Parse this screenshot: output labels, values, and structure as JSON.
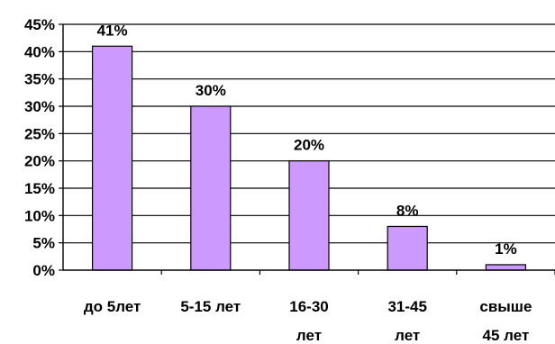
{
  "chart_data": {
    "type": "bar",
    "categories": [
      [
        "до 5лет"
      ],
      [
        "5-15 лет"
      ],
      [
        "16-30",
        "лет"
      ],
      [
        "31-45",
        "лет"
      ],
      [
        "свыше",
        "45 лет"
      ]
    ],
    "values": [
      41,
      30,
      20,
      8,
      1
    ],
    "data_labels": [
      "41%",
      "30%",
      "20%",
      "8%",
      "1%"
    ],
    "yticks": [
      "0%",
      "5%",
      "10%",
      "15%",
      "20%",
      "25%",
      "30%",
      "35%",
      "40%",
      "45%"
    ],
    "ylim": [
      0,
      45
    ],
    "grid": true,
    "legend": "none",
    "title": "",
    "xlabel": "",
    "ylabel": "",
    "colors": {
      "bar_fill": "#CC99FF",
      "bar_stroke": "#000000",
      "grid": "#000000",
      "axis": "#000000"
    }
  }
}
